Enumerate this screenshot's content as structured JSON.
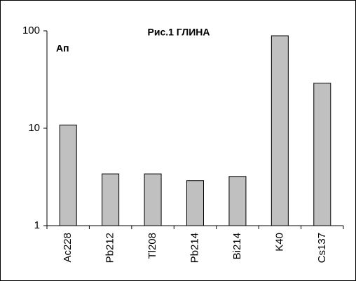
{
  "chart_data": {
    "type": "bar",
    "title": "Рис.1 ГЛИНА",
    "annotation": "Ап",
    "categories": [
      "Ac228",
      "Pb212",
      "Tl208",
      "Pb214",
      "Bi214",
      "K40",
      "Cs137"
    ],
    "values": [
      10.8,
      3.4,
      3.4,
      2.9,
      3.2,
      89,
      29
    ],
    "color": "#c0c0c0",
    "log_scale": true,
    "ylim": [
      1,
      100
    ],
    "yticks": [
      1,
      10,
      100
    ],
    "grid": false
  }
}
